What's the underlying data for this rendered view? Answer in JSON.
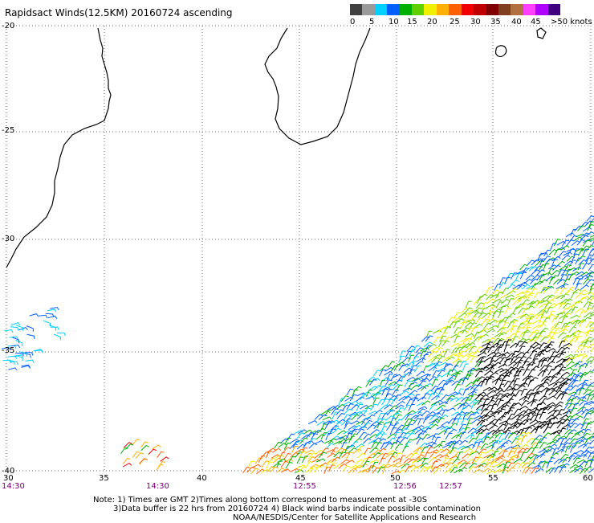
{
  "title": "Rapidsact Winds(12.5KM) 20160724 ascending",
  "legend": {
    "unit_label": ">50 knots",
    "labels": [
      "0",
      "5",
      "10",
      "15",
      "20",
      "25",
      "30",
      "35",
      "40",
      "45"
    ],
    "colors": [
      "#404040",
      "#9a9a9a",
      "#00d0ff",
      "#0060ff",
      "#00b000",
      "#60d000",
      "#f0f000",
      "#ffb000",
      "#ff6000",
      "#f00000",
      "#c00000",
      "#800000",
      "#804020",
      "#b07040",
      "#ff40ff",
      "#b000ff",
      "#400080"
    ]
  },
  "lat_labels": [
    "-20",
    "-25",
    "-30",
    "-35",
    "-40"
  ],
  "lon_labels": [
    "30",
    "35",
    "40",
    "45",
    "50",
    "55",
    "60"
  ],
  "time_labels": [
    {
      "text": "14:30"
    },
    {
      "text": "14:30"
    },
    {
      "text": "12:55"
    },
    {
      "text": "12:56"
    },
    {
      "text": "12:57"
    }
  ],
  "notes": [
    "Note: 1) Times are GMT 2)Times along bottom correspond to measurement at -30S",
    "3)Data buffer is 22 hrs from 20160724 4) Black wind barbs indicate possible contamination",
    "NOAA/NESDIS/Center for Satellite Applications and Research"
  ]
}
